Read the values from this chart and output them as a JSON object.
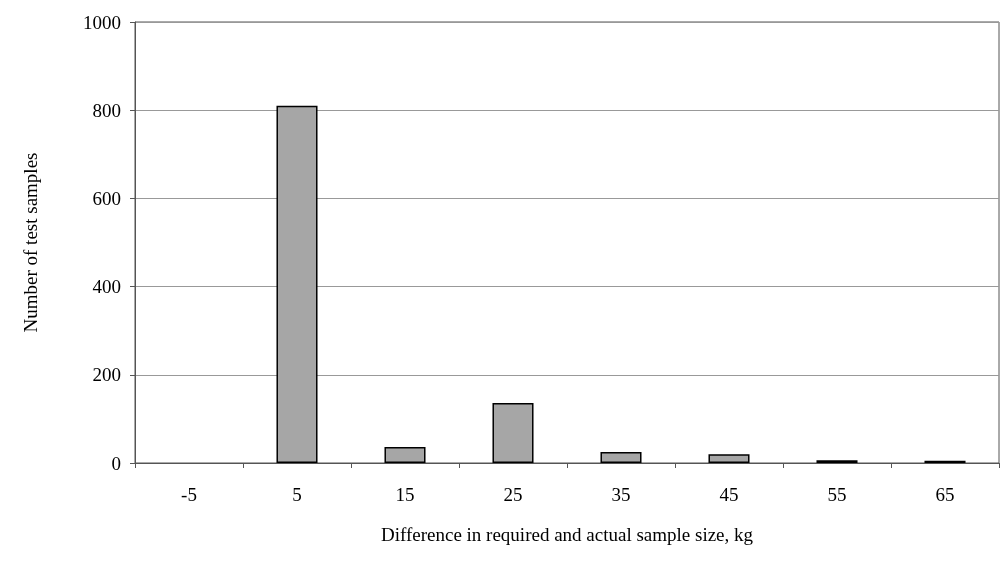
{
  "chart_data": {
    "type": "bar",
    "xlabel": "Difference in required and actual sample size, kg",
    "ylabel": "Number of test samples",
    "categories": [
      "-5",
      "5",
      "15",
      "25",
      "35",
      "45",
      "55",
      "65"
    ],
    "values": [
      null,
      810,
      36,
      136,
      25,
      20,
      6,
      5
    ],
    "color": "#a6a6a6",
    "ylim": [
      0,
      1000
    ],
    "yticks": [
      0,
      200,
      400,
      600,
      800,
      1000
    ],
    "grid": "y"
  }
}
